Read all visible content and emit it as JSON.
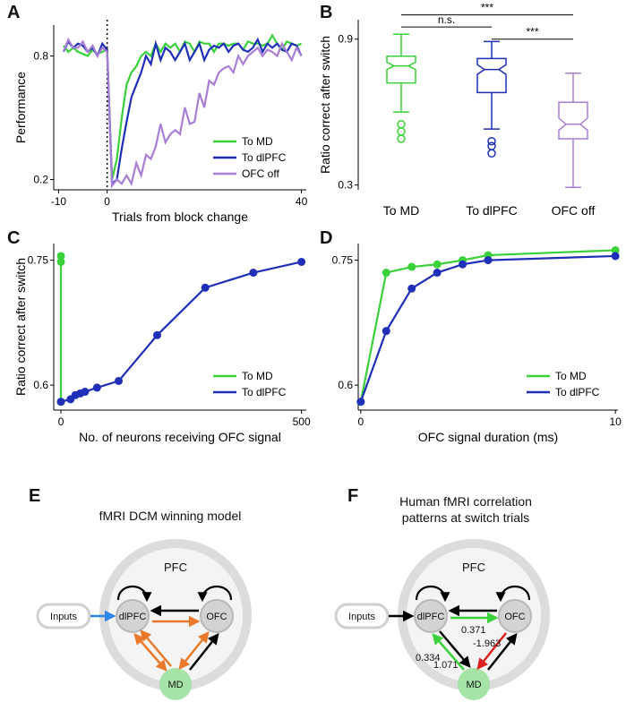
{
  "colors": {
    "md_green": "#3ad13a",
    "dlpfc_blue": "#1f2fb8",
    "ofc_purple": "#a97fd6",
    "arrow_orange": "#e8792a",
    "arrow_blue": "#2f86e8",
    "arrow_red": "#e02020",
    "arrow_green": "#3ad13a",
    "arrow_black": "#000000",
    "pfc_ring": "#dcdcdc",
    "node_gray": "#d3d3d3",
    "md_node": "#a6e3a6"
  },
  "panels": {
    "A": "A",
    "B": "B",
    "C": "C",
    "D": "D",
    "E": "E",
    "F": "F"
  },
  "chart_data": [
    {
      "id": "A",
      "type": "line",
      "xlabel": "Trials from block change",
      "ylabel": "Performance",
      "xticks": [
        -10,
        0,
        40
      ],
      "yticks": [
        0.2,
        0.8
      ],
      "xlim": [
        -11,
        41
      ],
      "ylim": [
        0.15,
        0.95
      ],
      "vline_at": 0,
      "legend": {
        "placement": "lower-right"
      },
      "series": [
        {
          "name": "To MD",
          "color": "#3ad13a",
          "x": [
            -9,
            -8,
            -7,
            -6,
            -5,
            -4,
            -3,
            -2,
            -1,
            0,
            1,
            2,
            3,
            4,
            5,
            6,
            7,
            8,
            9,
            10,
            11,
            12,
            13,
            14,
            15,
            16,
            17,
            18,
            19,
            20,
            21,
            22,
            23,
            24,
            25,
            26,
            27,
            28,
            29,
            30,
            31,
            32,
            33,
            34,
            35,
            36,
            37,
            38,
            39,
            40
          ],
          "y": [
            0.85,
            0.82,
            0.84,
            0.82,
            0.81,
            0.8,
            0.83,
            0.81,
            0.82,
            0.83,
            0.2,
            0.3,
            0.5,
            0.66,
            0.72,
            0.75,
            0.8,
            0.82,
            0.8,
            0.86,
            0.82,
            0.86,
            0.84,
            0.86,
            0.82,
            0.87,
            0.86,
            0.82,
            0.87,
            0.86,
            0.86,
            0.82,
            0.86,
            0.86,
            0.85,
            0.86,
            0.86,
            0.83,
            0.87,
            0.86,
            0.86,
            0.85,
            0.86,
            0.9,
            0.86,
            0.83,
            0.87,
            0.86,
            0.85,
            0.86
          ]
        },
        {
          "name": "To dlPFC",
          "color": "#1f2fb8",
          "x": [
            -9,
            -8,
            -7,
            -6,
            -5,
            -4,
            -3,
            -2,
            -1,
            0,
            1,
            2,
            3,
            4,
            5,
            6,
            7,
            8,
            9,
            10,
            11,
            12,
            13,
            14,
            15,
            16,
            17,
            18,
            19,
            20,
            21,
            22,
            23,
            24,
            25,
            26,
            27,
            28,
            29,
            30,
            31,
            32,
            33,
            34,
            35,
            36,
            37,
            38,
            39,
            40
          ],
          "y": [
            0.82,
            0.87,
            0.84,
            0.86,
            0.85,
            0.82,
            0.84,
            0.8,
            0.86,
            0.83,
            0.18,
            0.2,
            0.35,
            0.48,
            0.6,
            0.66,
            0.72,
            0.8,
            0.76,
            0.86,
            0.78,
            0.84,
            0.82,
            0.78,
            0.82,
            0.86,
            0.78,
            0.82,
            0.86,
            0.78,
            0.83,
            0.85,
            0.84,
            0.86,
            0.82,
            0.85,
            0.86,
            0.83,
            0.82,
            0.84,
            0.88,
            0.82,
            0.86,
            0.84,
            0.86,
            0.83,
            0.82,
            0.86,
            0.85,
            0.8
          ]
        },
        {
          "name": "OFC off",
          "color": "#a97fd6",
          "x": [
            -9,
            -8,
            -7,
            -6,
            -5,
            -4,
            -3,
            -2,
            -1,
            0,
            1,
            2,
            3,
            4,
            5,
            6,
            7,
            8,
            9,
            10,
            11,
            12,
            13,
            14,
            15,
            16,
            17,
            18,
            19,
            20,
            21,
            22,
            23,
            24,
            25,
            26,
            27,
            28,
            29,
            30,
            31,
            32,
            33,
            34,
            35,
            36,
            37,
            38,
            39,
            40
          ],
          "y": [
            0.82,
            0.88,
            0.84,
            0.84,
            0.87,
            0.82,
            0.85,
            0.8,
            0.84,
            0.82,
            0.17,
            0.2,
            0.18,
            0.22,
            0.18,
            0.28,
            0.22,
            0.32,
            0.3,
            0.36,
            0.47,
            0.38,
            0.42,
            0.44,
            0.42,
            0.55,
            0.47,
            0.48,
            0.62,
            0.55,
            0.68,
            0.66,
            0.72,
            0.74,
            0.75,
            0.72,
            0.8,
            0.76,
            0.8,
            0.82,
            0.84,
            0.8,
            0.83,
            0.82,
            0.8,
            0.86,
            0.82,
            0.78,
            0.84,
            0.8
          ]
        }
      ]
    },
    {
      "id": "B",
      "type": "box",
      "ylabel": "Ratio correct after switch",
      "yticks": [
        0.3,
        0.9
      ],
      "ylim": [
        0.28,
        0.98
      ],
      "categories": [
        "To MD",
        "To dlPFC",
        "OFC off"
      ],
      "boxes": [
        {
          "name": "To MD",
          "color": "#3ad13a",
          "whisker_low": 0.6,
          "q1": 0.72,
          "median": 0.79,
          "q3": 0.83,
          "whisker_high": 0.92,
          "notch_low": 0.775,
          "notch_high": 0.805,
          "outliers": [
            0.55,
            0.52,
            0.49
          ]
        },
        {
          "name": "To dlPFC",
          "color": "#1f2fb8",
          "whisker_low": 0.53,
          "q1": 0.68,
          "median": 0.775,
          "q3": 0.82,
          "whisker_high": 0.89,
          "notch_low": 0.755,
          "notch_high": 0.795,
          "outliers": [
            0.48,
            0.46,
            0.43
          ]
        },
        {
          "name": "OFC off",
          "color": "#a97fd6",
          "whisker_low": 0.29,
          "q1": 0.49,
          "median": 0.55,
          "q3": 0.64,
          "whisker_high": 0.76,
          "notch_low": 0.525,
          "notch_high": 0.575,
          "outliers": []
        }
      ],
      "annotations": [
        {
          "text": "n.s.",
          "from": 0,
          "to": 1,
          "level": 0.95
        },
        {
          "text": "***",
          "from": 1,
          "to": 2,
          "level": 0.9
        },
        {
          "text": "***",
          "from": 0,
          "to": 2,
          "level": 1.0
        }
      ]
    },
    {
      "id": "C",
      "type": "line",
      "xlabel": "No. of neurons receiving OFC signal",
      "ylabel": "Ratio correct after switch",
      "xticks": [
        0,
        500
      ],
      "yticks": [
        0.6,
        0.75
      ],
      "xlim": [
        -15,
        510
      ],
      "ylim": [
        0.57,
        0.77
      ],
      "legend": {
        "placement": "lower-right"
      },
      "series": [
        {
          "name": "To MD",
          "color": "#3ad13a",
          "x": [
            0,
            0,
            0
          ],
          "y": [
            0.58,
            0.748,
            0.755
          ]
        },
        {
          "name": "To dlPFC",
          "color": "#1f2fb8",
          "x": [
            0,
            20,
            30,
            40,
            50,
            75,
            120,
            200,
            300,
            400,
            500
          ],
          "y": [
            0.58,
            0.583,
            0.588,
            0.59,
            0.592,
            0.597,
            0.605,
            0.66,
            0.717,
            0.735,
            0.748
          ]
        }
      ]
    },
    {
      "id": "D",
      "type": "line",
      "xlabel": "OFC signal duration (ms)",
      "xticks": [
        0,
        10
      ],
      "yticks": [
        0.6,
        0.75
      ],
      "xlim": [
        -0.1,
        10.1
      ],
      "ylim": [
        0.57,
        0.77
      ],
      "legend": {
        "placement": "lower-right"
      },
      "series": [
        {
          "name": "To MD",
          "color": "#3ad13a",
          "x": [
            0,
            1,
            2,
            3,
            4,
            5,
            10
          ],
          "y": [
            0.58,
            0.735,
            0.742,
            0.745,
            0.75,
            0.756,
            0.762
          ]
        },
        {
          "name": "To dlPFC",
          "color": "#1f2fb8",
          "x": [
            0,
            1,
            2,
            3,
            4,
            5,
            10
          ],
          "y": [
            0.58,
            0.665,
            0.716,
            0.735,
            0.745,
            0.75,
            0.755
          ]
        }
      ]
    }
  ],
  "diagram_E": {
    "title": "fMRI DCM winning model",
    "pfc": "PFC",
    "inputs": "Inputs",
    "dlpfc": "dlPFC",
    "ofc": "OFC",
    "md": "MD"
  },
  "diagram_F": {
    "title_line1": "Human fMRI correlation",
    "title_line2": "patterns at switch trials",
    "pfc": "PFC",
    "inputs": "Inputs",
    "dlpfc": "dlPFC",
    "ofc": "OFC",
    "md": "MD",
    "w_dlpfc_ofc": "0.371",
    "w_ofc_md": "-1.963",
    "w_md_dlpfc": "0.334",
    "w_dlpfc_md": "1.071"
  }
}
